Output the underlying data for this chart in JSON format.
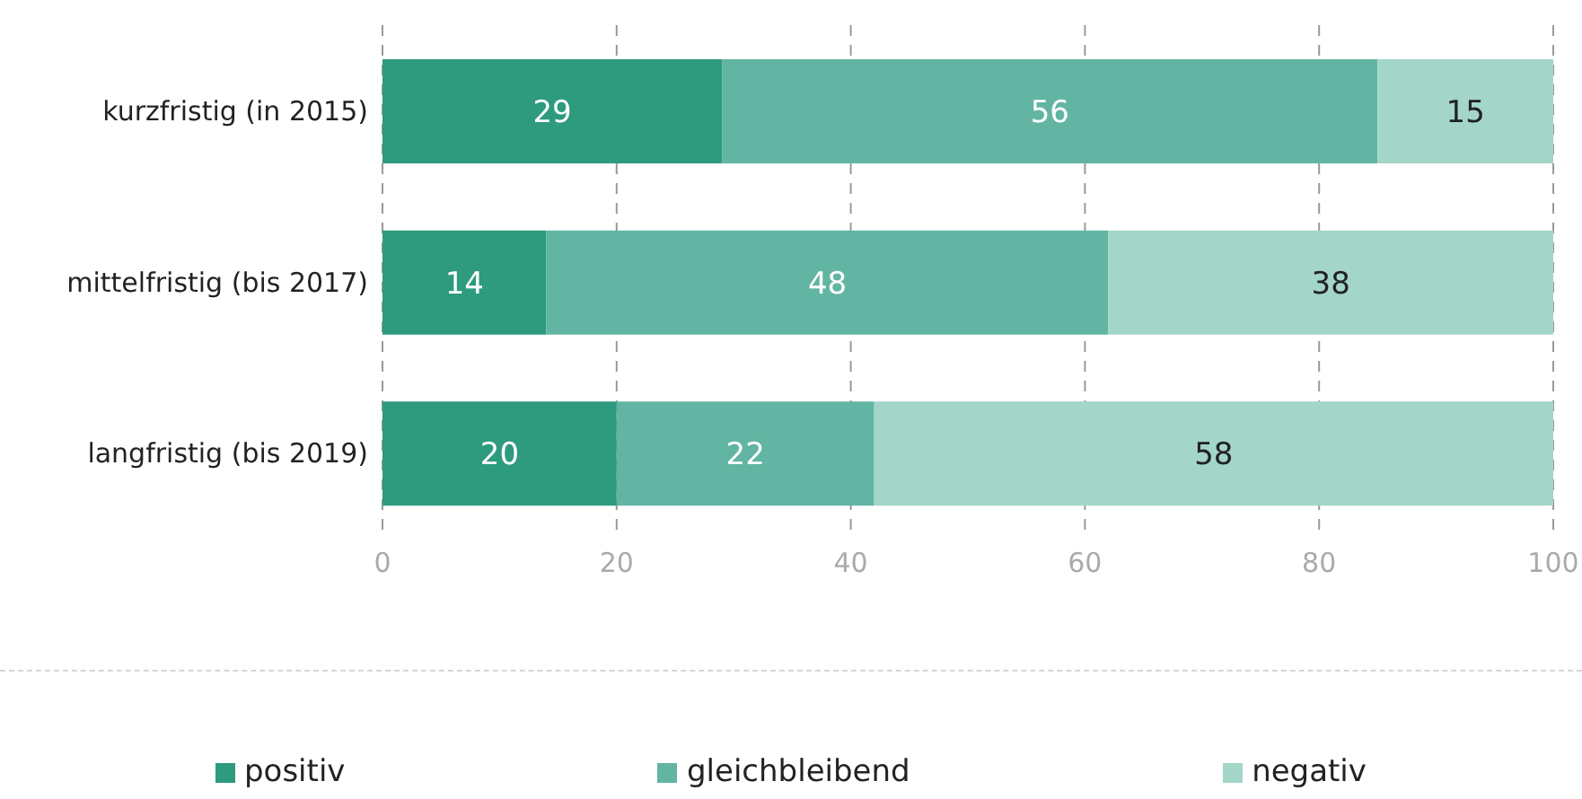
{
  "chart_data": {
    "type": "bar",
    "orientation": "horizontal",
    "stacked": true,
    "categories": [
      "kurzfristig (in 2015)",
      "mittelfristig (bis 2017)",
      "langfristig (bis 2019)"
    ],
    "series": [
      {
        "name": "positiv",
        "color": "#2e9a7e",
        "values": [
          29,
          14,
          20
        ]
      },
      {
        "name": "gleichbleibend",
        "color": "#62b5a2",
        "values": [
          56,
          48,
          22
        ]
      },
      {
        "name": "negativ",
        "color": "#a3d5c9",
        "values": [
          15,
          38,
          58
        ]
      }
    ],
    "xlim": [
      0,
      100
    ],
    "xticks": [
      0,
      20,
      40,
      60,
      80,
      100
    ],
    "grid": "x",
    "legend": "bottom",
    "data_labels": true
  }
}
